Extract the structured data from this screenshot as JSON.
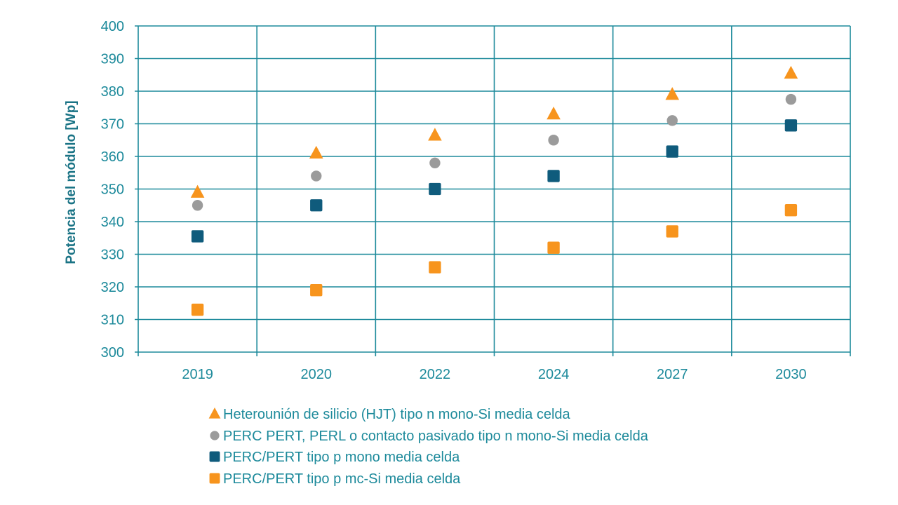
{
  "chart_data": {
    "type": "scatter",
    "title": "",
    "xlabel": "",
    "ylabel": "Potencia del módulo [Wp]",
    "categories": [
      "2019",
      "2020",
      "2022",
      "2024",
      "2027",
      "2030"
    ],
    "ylim": [
      300,
      400
    ],
    "yticks": [
      300,
      310,
      320,
      330,
      340,
      350,
      360,
      370,
      380,
      390,
      400
    ],
    "grid": true,
    "legend_position": "bottom",
    "series": [
      {
        "name": "Heterounión de silicio (HJT) tipo n mono-Si media celda",
        "marker": "triangle",
        "color": "#f7941d",
        "values": [
          349,
          361,
          366.5,
          373,
          379,
          385.5
        ]
      },
      {
        "name": "PERC PERT, PERL o contacto pasivado tipo n mono-Si media celda",
        "marker": "circle",
        "color": "#9b9b9b",
        "values": [
          345,
          354,
          358,
          365,
          371,
          377.5
        ]
      },
      {
        "name": "PERC/PERT tipo p mono media celda",
        "marker": "square",
        "color": "#0f5b7c",
        "values": [
          335.5,
          345,
          350,
          354,
          361.5,
          369.5
        ]
      },
      {
        "name": "PERC/PERT tipo p mc-Si media celda",
        "marker": "square",
        "color": "#f7941d",
        "values": [
          313,
          319,
          326,
          332,
          337,
          343.5
        ]
      }
    ],
    "grid_color": "#1d8a9b"
  }
}
